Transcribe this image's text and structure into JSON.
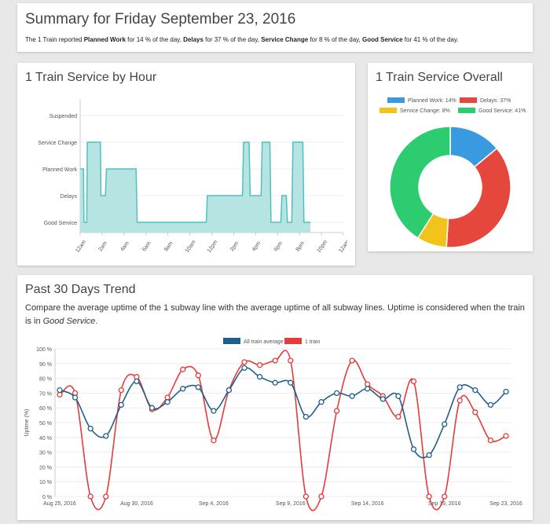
{
  "summary": {
    "title": "Summary for Friday September 23, 2016",
    "text_before": "The 1 Train reported ",
    "planned_label": "Planned Work",
    "text_planned": " for 14 % of the day, ",
    "delays_label": "Delays",
    "text_delays": " for 37 % of the day, ",
    "service_change_label": "Service Change",
    "text_service_change": " for 8 % of the day, ",
    "good_service_label": "Good Service",
    "text_good_service": " for 41 % of the day."
  },
  "hourly": {
    "title": "1 Train Service by Hour"
  },
  "overall": {
    "title": "1 Train Service Overall"
  },
  "trend": {
    "title": "Past 30 Days Trend",
    "desc_before": "Compare the average uptime of the 1 subway line with the average uptime of all subway lines. Uptime is considered when the train is in ",
    "desc_em": "Good Service",
    "desc_after": "."
  },
  "chart_data": [
    {
      "type": "area",
      "title": "1 Train Service by Hour",
      "color": "#4fc1bf",
      "fill": "#b6e4e3",
      "y_categories": [
        "Good Service",
        "Delays",
        "Planned Work",
        "Service Change",
        "Suspended"
      ],
      "x_ticks": [
        "12am",
        "2am",
        "4am",
        "6am",
        "8am",
        "10am",
        "12pm",
        "2pm",
        "4pm",
        "6pm",
        "8pm",
        "10pm",
        "12am"
      ],
      "x_range_hours": [
        0,
        24
      ],
      "x_hours": [
        0,
        0.3,
        0.35,
        0.6,
        0.65,
        1,
        1.1,
        1.85,
        1.9,
        2.3,
        2.4,
        2.8,
        2.9,
        5.1,
        5.2,
        11.5,
        11.6,
        14.8,
        14.9,
        15.4,
        15.5,
        16.5,
        16.6,
        17.3,
        17.4,
        18.3,
        18.4,
        18.8,
        18.9,
        19.3,
        19.4,
        20.3,
        20.4,
        21
      ],
      "y_values": [
        2,
        2,
        0,
        0,
        3,
        3,
        3,
        3,
        1,
        1,
        2,
        2,
        2,
        2,
        0,
        0,
        1,
        1,
        3,
        3,
        1,
        1,
        3,
        3,
        0,
        0,
        1,
        1,
        0,
        0,
        3,
        3,
        0,
        0
      ]
    },
    {
      "type": "pie",
      "title": "1 Train Service Overall",
      "legend": "top",
      "slices": [
        {
          "label": "Planned Work: 14%",
          "value": 14,
          "color": "#3a9ae0"
        },
        {
          "label": "Delays: 37%",
          "value": 37,
          "color": "#e6473c"
        },
        {
          "label": "Service Change: 8%",
          "value": 8,
          "color": "#f2c31c"
        },
        {
          "label": "Good Service: 41%",
          "value": 41,
          "color": "#2ecc71"
        }
      ]
    },
    {
      "type": "line",
      "title": "Past 30 Days Trend",
      "ylabel": "Uptime (%)",
      "ylim": [
        0,
        100
      ],
      "y_ticks": [
        "0 %",
        "10 %",
        "20 %",
        "30 %",
        "40 %",
        "50 %",
        "60 %",
        "70 %",
        "80 %",
        "90 %",
        "100 %"
      ],
      "x_tick_labels": [
        "Aug 25, 2016",
        "Aug 30, 2016",
        "Sep 4, 2016",
        "Sep 9, 2016",
        "Sep 14, 2016",
        "Sep 19, 2016",
        "Sep 23, 2016"
      ],
      "x_tick_index": [
        0,
        5,
        10,
        15,
        20,
        25,
        29
      ],
      "legend": "top",
      "series": [
        {
          "name": "All train average",
          "color": "#1f5f8b",
          "values": [
            72,
            67,
            46,
            41,
            62,
            78,
            60,
            64,
            73,
            74,
            58,
            72,
            87,
            81,
            77,
            77,
            54,
            64,
            70,
            68,
            73,
            66,
            68,
            32,
            28,
            49,
            74,
            72,
            62,
            71
          ]
        },
        {
          "name": "1 train",
          "color": "#e43b3b",
          "values": [
            69,
            70,
            0,
            0,
            72,
            81,
            59,
            67,
            86,
            82,
            38,
            72,
            91,
            89,
            92,
            92,
            0,
            0,
            58,
            92,
            76,
            68,
            54,
            78,
            0,
            0,
            65,
            57,
            38,
            41
          ]
        }
      ]
    }
  ]
}
